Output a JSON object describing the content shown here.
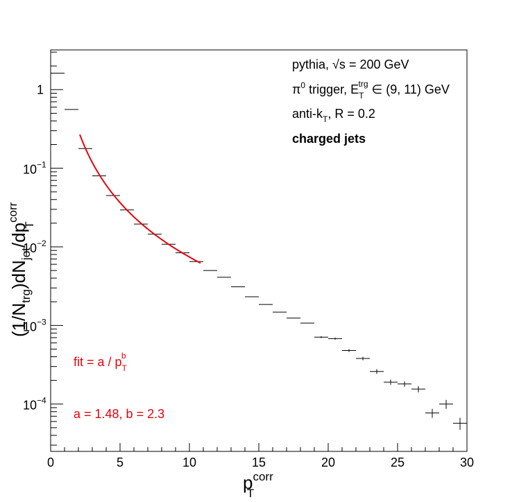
{
  "legend": {
    "line1": "pythia, ",
    "line1_sqrt": "√s",
    "line1_rest": " = 200 GeV",
    "line2_pi": "π",
    "line2_pi_sup": "0",
    "line2_mid": " trigger, E",
    "line2_sub": "T",
    "line2_sup": "trg",
    "line2_rest": " ∈ (9, 11) GeV",
    "line3_a": "anti-k",
    "line3_sub": "T",
    "line3_b": ", R = 0.2",
    "line4": "charged jets"
  },
  "fit_label": {
    "formula_a": "fit = a / p",
    "formula_sub": "T",
    "formula_sup": "b",
    "params": "a = 1.48, b = 2.3",
    "color": "#e8000b"
  },
  "chart_data": {
    "type": "scatter",
    "xlabel_main": "p",
    "xlabel_sup": "corr",
    "xlabel_sub": "T",
    "ylabel": {
      "p1": "(1/N",
      "p1_sub": "trg",
      "p2": ")dN",
      "p2_sub": "jet",
      "p3": "/dp",
      "p3_sup": "corr",
      "p3_sub": "T"
    },
    "xlim": [
      0,
      30
    ],
    "ylim": [
      2.5e-05,
      3.2
    ],
    "yscale": "log",
    "grid": false,
    "x_ticks": [
      0,
      5,
      10,
      15,
      20,
      25,
      30
    ],
    "x_tick_labels": [
      "0",
      "5",
      "10",
      "15",
      "20",
      "25",
      "30"
    ],
    "y_ticks": [
      0.0001,
      0.001,
      0.01,
      0.1,
      1
    ],
    "y_tick_labels": [
      {
        "base": "10",
        "exp": "−4"
      },
      {
        "base": "10",
        "exp": "−3"
      },
      {
        "base": "10",
        "exp": "−2"
      },
      {
        "base": "10",
        "exp": "−1"
      },
      {
        "base": "1",
        "exp": ""
      }
    ],
    "series": [
      {
        "x": [
          0.5,
          1.5,
          2.5,
          3.5,
          4.5,
          5.5,
          6.5,
          7.5,
          8.5,
          9.5,
          10.5,
          11.5,
          12.5,
          13.5,
          14.5,
          15.5,
          16.5,
          17.5,
          18.5,
          19.5,
          20.5,
          21.5,
          22.5,
          23.5,
          24.5,
          25.5,
          26.5,
          27.5,
          28.5,
          29.5
        ],
        "y": [
          1.62,
          0.56,
          0.178,
          0.08,
          0.045,
          0.0295,
          0.0195,
          0.0145,
          0.0108,
          0.0084,
          0.0065,
          0.005,
          0.0041,
          0.0031,
          0.00232,
          0.00185,
          0.00148,
          0.00124,
          0.00107,
          0.00071,
          0.00068,
          0.00048,
          0.00038,
          0.00026,
          0.00019,
          0.00018,
          0.000155,
          7.7e-05,
          0.0001,
          5.7e-05
        ],
        "yerr": [
          0,
          0,
          0,
          0,
          0,
          0,
          0,
          0,
          0,
          0,
          0,
          0,
          0,
          0,
          0,
          0,
          0,
          0,
          0,
          2e-05,
          2e-05,
          2e-05,
          2e-05,
          1.8e-05,
          1.4e-05,
          1.4e-05,
          1.4e-05,
          1e-05,
          1.3e-05,
          1e-05
        ],
        "xerr": 0.5,
        "color": "#000000"
      }
    ],
    "fit": {
      "a": 1.48,
      "b": 2.3,
      "x_range": [
        2.1,
        10.8
      ],
      "color": "#e8000b"
    }
  }
}
